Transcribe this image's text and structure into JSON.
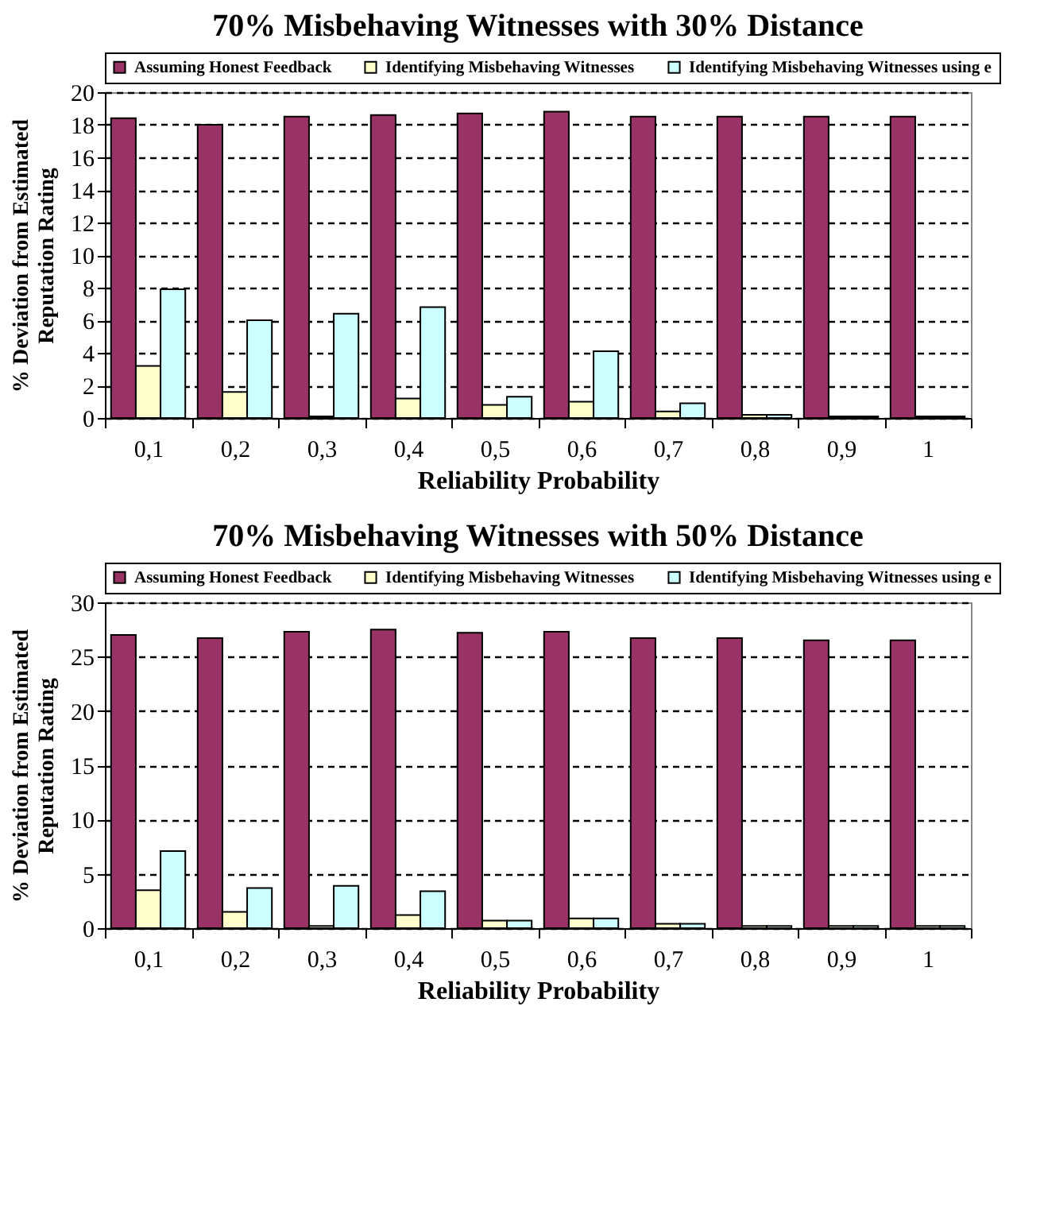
{
  "chart_data": [
    {
      "type": "bar",
      "title": "70% Misbehaving Witnesses with 30% Distance",
      "xlabel": "Reliability Probability",
      "ylabel": "% Deviation from Estimated\nReputation Rating",
      "categories": [
        "0,1",
        "0,2",
        "0,3",
        "0,4",
        "0,5",
        "0,6",
        "0,7",
        "0,8",
        "0,9",
        "1"
      ],
      "series": [
        {
          "name": "Assuming Honest Feedback",
          "color": "#993366",
          "values": [
            18.4,
            18.0,
            18.5,
            18.6,
            18.7,
            18.8,
            18.5,
            18.5,
            18.5,
            18.5
          ]
        },
        {
          "name": "Identifying Misbehaving Witnesses",
          "color": "#ffffcc",
          "values": [
            3.2,
            1.6,
            0.1,
            1.2,
            0.8,
            1.0,
            0.4,
            0.2,
            0.1,
            0.1
          ]
        },
        {
          "name": "Identifying Misbehaving Witnesses using e",
          "color": "#ccffff",
          "values": [
            7.9,
            6.0,
            6.4,
            6.8,
            1.3,
            4.1,
            0.9,
            0.2,
            0.1,
            0.1
          ]
        }
      ],
      "ylim": [
        0,
        20
      ],
      "yticks": [
        0,
        2,
        4,
        6,
        8,
        10,
        12,
        14,
        16,
        18,
        20
      ],
      "grid": "y",
      "legend": "top"
    },
    {
      "type": "bar",
      "title": "70% Misbehaving Witnesses with 50% Distance",
      "xlabel": "Reliability Probability",
      "ylabel": "% Deviation from Estimated\nReputation Rating",
      "categories": [
        "0,1",
        "0,2",
        "0,3",
        "0,4",
        "0,5",
        "0,6",
        "0,7",
        "0,8",
        "0,9",
        "1"
      ],
      "series": [
        {
          "name": "Assuming Honest Feedback",
          "color": "#993366",
          "values": [
            27.0,
            26.7,
            27.3,
            27.5,
            27.2,
            27.3,
            26.7,
            26.7,
            26.5,
            26.5
          ]
        },
        {
          "name": "Identifying Misbehaving Witnesses",
          "color": "#ffffcc",
          "values": [
            3.5,
            1.5,
            0.2,
            1.2,
            0.7,
            0.9,
            0.4,
            0.2,
            0.2,
            0.2
          ]
        },
        {
          "name": "Identifying Misbehaving Witnesses using e",
          "color": "#ccffff",
          "values": [
            7.1,
            3.7,
            3.9,
            3.4,
            0.7,
            0.9,
            0.4,
            0.2,
            0.2,
            0.2
          ]
        }
      ],
      "ylim": [
        0,
        30
      ],
      "yticks": [
        0,
        5,
        10,
        15,
        20,
        25,
        30
      ],
      "grid": "y",
      "legend": "top"
    }
  ]
}
